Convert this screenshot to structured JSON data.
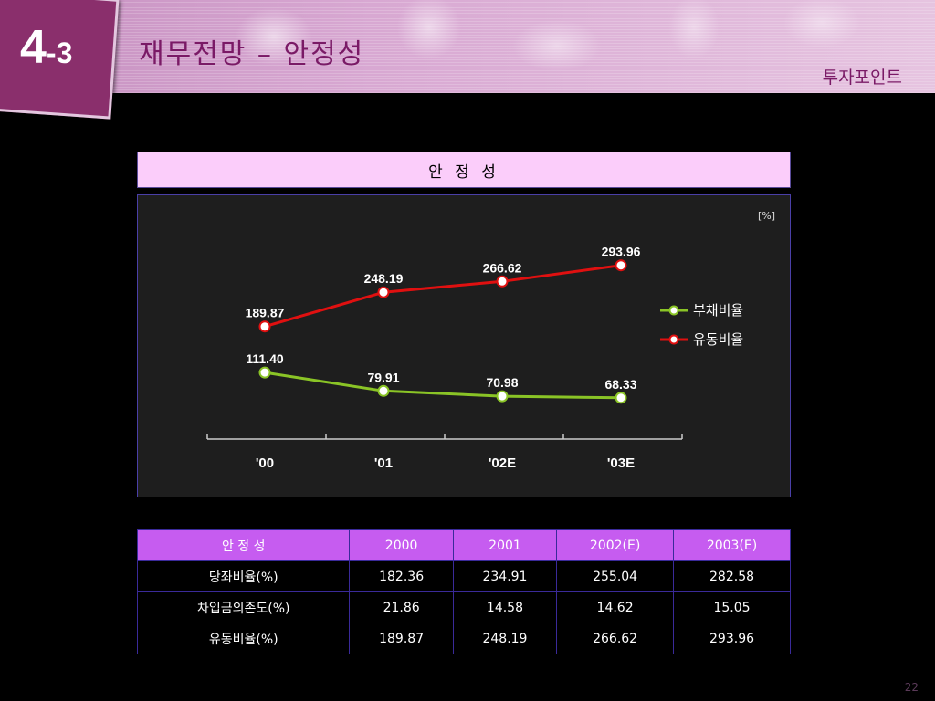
{
  "header": {
    "badge_major": "4",
    "badge_minor": "-3",
    "title": "재무전망 – 안정성",
    "section": "투자포인트"
  },
  "chart_title": "안 정 성",
  "chart_data": {
    "type": "line",
    "title": "안 정 성",
    "unit_label": "[%]",
    "categories": [
      "'00",
      "'01",
      "'02E",
      "'03E"
    ],
    "series": [
      {
        "name": "부채비율",
        "values": [
          111.4,
          79.91,
          70.98,
          68.33
        ],
        "color": "#8ac426",
        "labels": [
          "111.40",
          "79.91",
          "70.98",
          "68.33"
        ]
      },
      {
        "name": "유동비율",
        "values": [
          189.87,
          248.19,
          266.62,
          293.96
        ],
        "color": "#e01010",
        "labels": [
          "189.87",
          "248.19",
          "266.62",
          "293.96"
        ]
      }
    ],
    "legend_position": "right",
    "grid": false
  },
  "table": {
    "headers": [
      "안 정 성",
      "2000",
      "2001",
      "2002(E)",
      "2003(E)"
    ],
    "rows": [
      [
        "당좌비율(%)",
        "182.36",
        "234.91",
        "255.04",
        "282.58"
      ],
      [
        "차입금의존도(%)",
        "21.86",
        "14.58",
        "14.62",
        "15.05"
      ],
      [
        "유동비율(%)",
        "189.87",
        "248.19",
        "266.62",
        "293.96"
      ]
    ]
  },
  "page_number": "22"
}
